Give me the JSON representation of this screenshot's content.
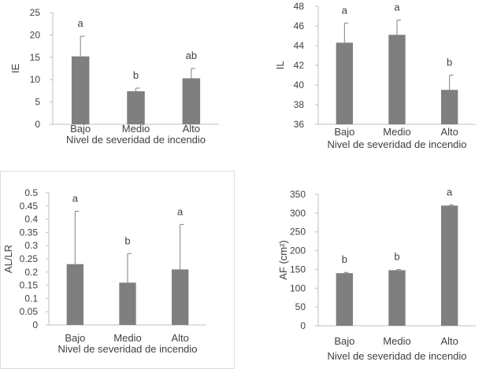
{
  "colors": {
    "bar": "#7f7f7f",
    "axis": "#bfbfbf",
    "text": "#404040",
    "error_bar": "#808080"
  },
  "chart_data": [
    {
      "type": "bar",
      "categories": [
        "Bajo",
        "Medio",
        "Alto"
      ],
      "values": [
        15.2,
        7.4,
        10.3
      ],
      "errors": [
        4.5,
        0.7,
        2.2
      ],
      "letters": [
        "a",
        "b",
        "ab"
      ],
      "xlabel": "Nivel de severidad de incendio",
      "ylabel": "IE",
      "ylim": [
        0,
        25
      ],
      "yticks": [
        "0",
        "5",
        "10",
        "15",
        "20",
        "25"
      ],
      "legend": "none",
      "grid": false
    },
    {
      "type": "bar",
      "categories": [
        "Bajo",
        "Medio",
        "Alto"
      ],
      "values": [
        44.3,
        45.1,
        39.5
      ],
      "errors": [
        2.0,
        1.5,
        1.5
      ],
      "letters": [
        "a",
        "a",
        "b"
      ],
      "xlabel": "Nivel de severidad de incendio",
      "ylabel": "IL",
      "ylim": [
        36,
        48
      ],
      "yticks": [
        "36",
        "38",
        "40",
        "42",
        "44",
        "46",
        "48"
      ],
      "legend": "none",
      "grid": false
    },
    {
      "type": "bar",
      "categories": [
        "Bajo",
        "Medio",
        "Alto"
      ],
      "values": [
        0.23,
        0.16,
        0.21
      ],
      "errors": [
        0.2,
        0.11,
        0.17
      ],
      "letters": [
        "a",
        "b",
        "a"
      ],
      "xlabel": "Nivel de severidad de incendio",
      "ylabel": "AL/LR",
      "ylim": [
        0,
        0.5
      ],
      "yticks": [
        "0",
        "0.05",
        "0.1",
        "0.15",
        "0.2",
        "0.25",
        "0.3",
        "0.35",
        "0.4",
        "0.45",
        "0.5"
      ],
      "legend": "none",
      "grid": false
    },
    {
      "type": "bar",
      "categories": [
        "Bajo",
        "Medio",
        "Alto"
      ],
      "values": [
        140,
        148,
        320
      ],
      "errors": [
        2,
        2,
        2
      ],
      "letters": [
        "b",
        "b",
        "a"
      ],
      "xlabel": "Nivel de severidad de incendio",
      "ylabel": "AF (cm²)",
      "ylim": [
        0,
        350
      ],
      "yticks": [
        "0",
        "50",
        "100",
        "150",
        "200",
        "250",
        "300",
        "350"
      ],
      "legend": "none",
      "grid": false
    }
  ]
}
